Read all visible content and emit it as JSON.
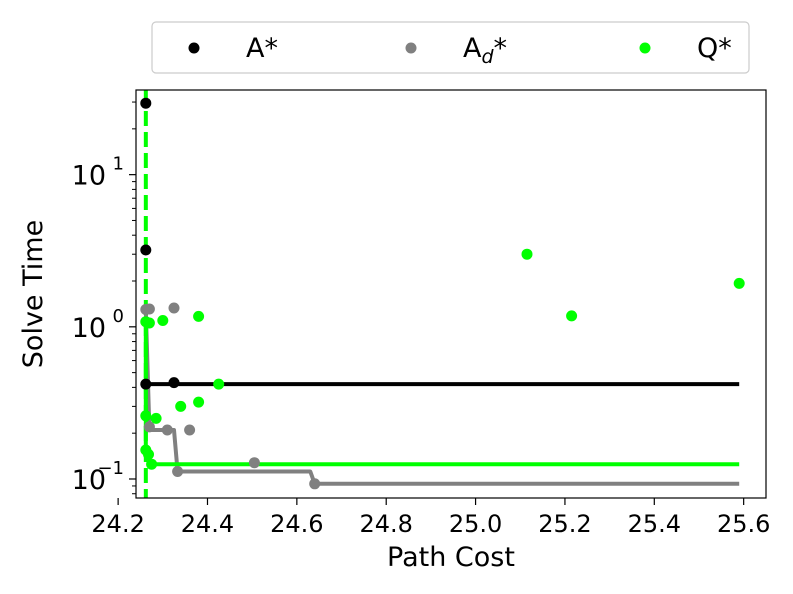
{
  "chart_data": {
    "type": "scatter",
    "title": "",
    "xlabel": "Path Cost",
    "ylabel": "Solve Time",
    "xlim": [
      24.24,
      25.65
    ],
    "ylim": [
      0.075,
      36
    ],
    "yscale": "log",
    "grid": false,
    "legend_placement": "top",
    "xticks": [
      24.2,
      24.4,
      24.6,
      24.8,
      25.0,
      25.2,
      25.4,
      25.6
    ],
    "xtick_labels": [
      "24.2",
      "24.4",
      "24.6",
      "24.8",
      "25.0",
      "25.2",
      "25.4",
      "25.6"
    ],
    "yticks": [
      {
        "value": 10,
        "base": "10",
        "exp": "1"
      },
      {
        "value": 1,
        "base": "10",
        "exp": "0"
      },
      {
        "value": 0.1,
        "base": "10",
        "exp": "−1"
      }
    ],
    "vline": {
      "x": 24.262,
      "color": "#00ff00",
      "dash": true
    },
    "series": [
      {
        "name": "A*",
        "legend_base": "A",
        "legend_sub": "",
        "legend_suffix": "*",
        "color": "#000000",
        "points": [
          [
            24.262,
            29.5
          ],
          [
            24.262,
            3.2
          ],
          [
            24.262,
            0.42
          ],
          [
            24.325,
            0.43
          ]
        ],
        "frontier": [
          [
            24.262,
            0.42
          ],
          [
            25.59,
            0.42
          ]
        ]
      },
      {
        "name": "Ad*",
        "legend_base": "A",
        "legend_sub": "d",
        "legend_suffix": "*",
        "color": "#808080",
        "points": [
          [
            24.262,
            1.3
          ],
          [
            24.27,
            1.31
          ],
          [
            24.325,
            1.33
          ],
          [
            24.27,
            0.22
          ],
          [
            24.31,
            0.21
          ],
          [
            24.36,
            0.21
          ],
          [
            24.333,
            0.112
          ],
          [
            24.505,
            0.128
          ],
          [
            24.64,
            0.093
          ]
        ],
        "frontier": [
          [
            24.262,
            1.3
          ],
          [
            24.27,
            0.21
          ],
          [
            24.325,
            0.21
          ],
          [
            24.333,
            0.112
          ],
          [
            24.63,
            0.112
          ],
          [
            24.64,
            0.093
          ],
          [
            25.59,
            0.093
          ]
        ]
      },
      {
        "name": "Q*",
        "legend_base": "Q",
        "legend_sub": "",
        "legend_suffix": "*",
        "color": "#00ff00",
        "points": [
          [
            24.262,
            1.08
          ],
          [
            24.27,
            1.06
          ],
          [
            24.3,
            1.1
          ],
          [
            24.38,
            1.17
          ],
          [
            24.425,
            0.42
          ],
          [
            24.262,
            0.26
          ],
          [
            24.285,
            0.25
          ],
          [
            24.34,
            0.3
          ],
          [
            24.38,
            0.32
          ],
          [
            24.262,
            0.155
          ],
          [
            24.268,
            0.145
          ],
          [
            24.275,
            0.125
          ],
          [
            25.115,
            3.0
          ],
          [
            25.215,
            1.18
          ],
          [
            25.59,
            1.93
          ]
        ],
        "frontier": [
          [
            24.262,
            1.08
          ],
          [
            24.262,
            0.155
          ],
          [
            24.275,
            0.125
          ],
          [
            25.59,
            0.125
          ]
        ]
      }
    ]
  }
}
